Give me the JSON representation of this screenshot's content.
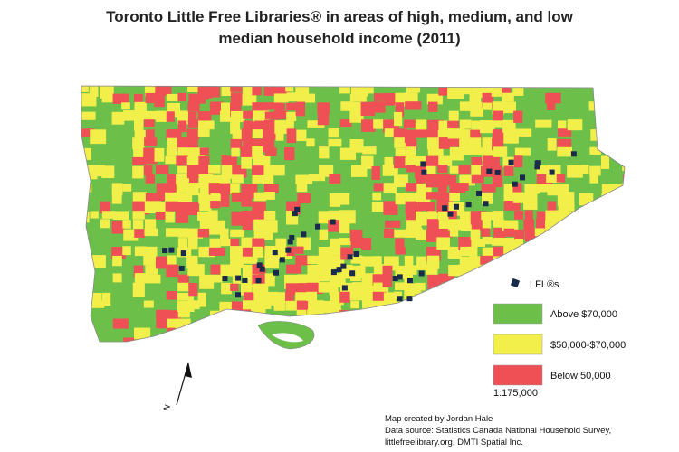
{
  "title": [
    "Toronto Little Free Libraries® in areas of high, medium, and low",
    "median household income (2011)"
  ],
  "legend": {
    "marker_label": "LFL®s",
    "marker_color": "#1a2a4a",
    "items": [
      {
        "label": "Above $70,000",
        "color": "#6cc04a"
      },
      {
        "label": "$50,000-$70,000",
        "color": "#f2ee4a"
      },
      {
        "label": "Below 50,000",
        "color": "#ee5055"
      }
    ]
  },
  "scale": "1:175,000",
  "north": "N",
  "credits": [
    "Map created by Jordan Hale",
    "Data source: Statistics Canada National Household Survey,",
    "littlefreelibrary.org, DMTI Spatial Inc."
  ]
}
